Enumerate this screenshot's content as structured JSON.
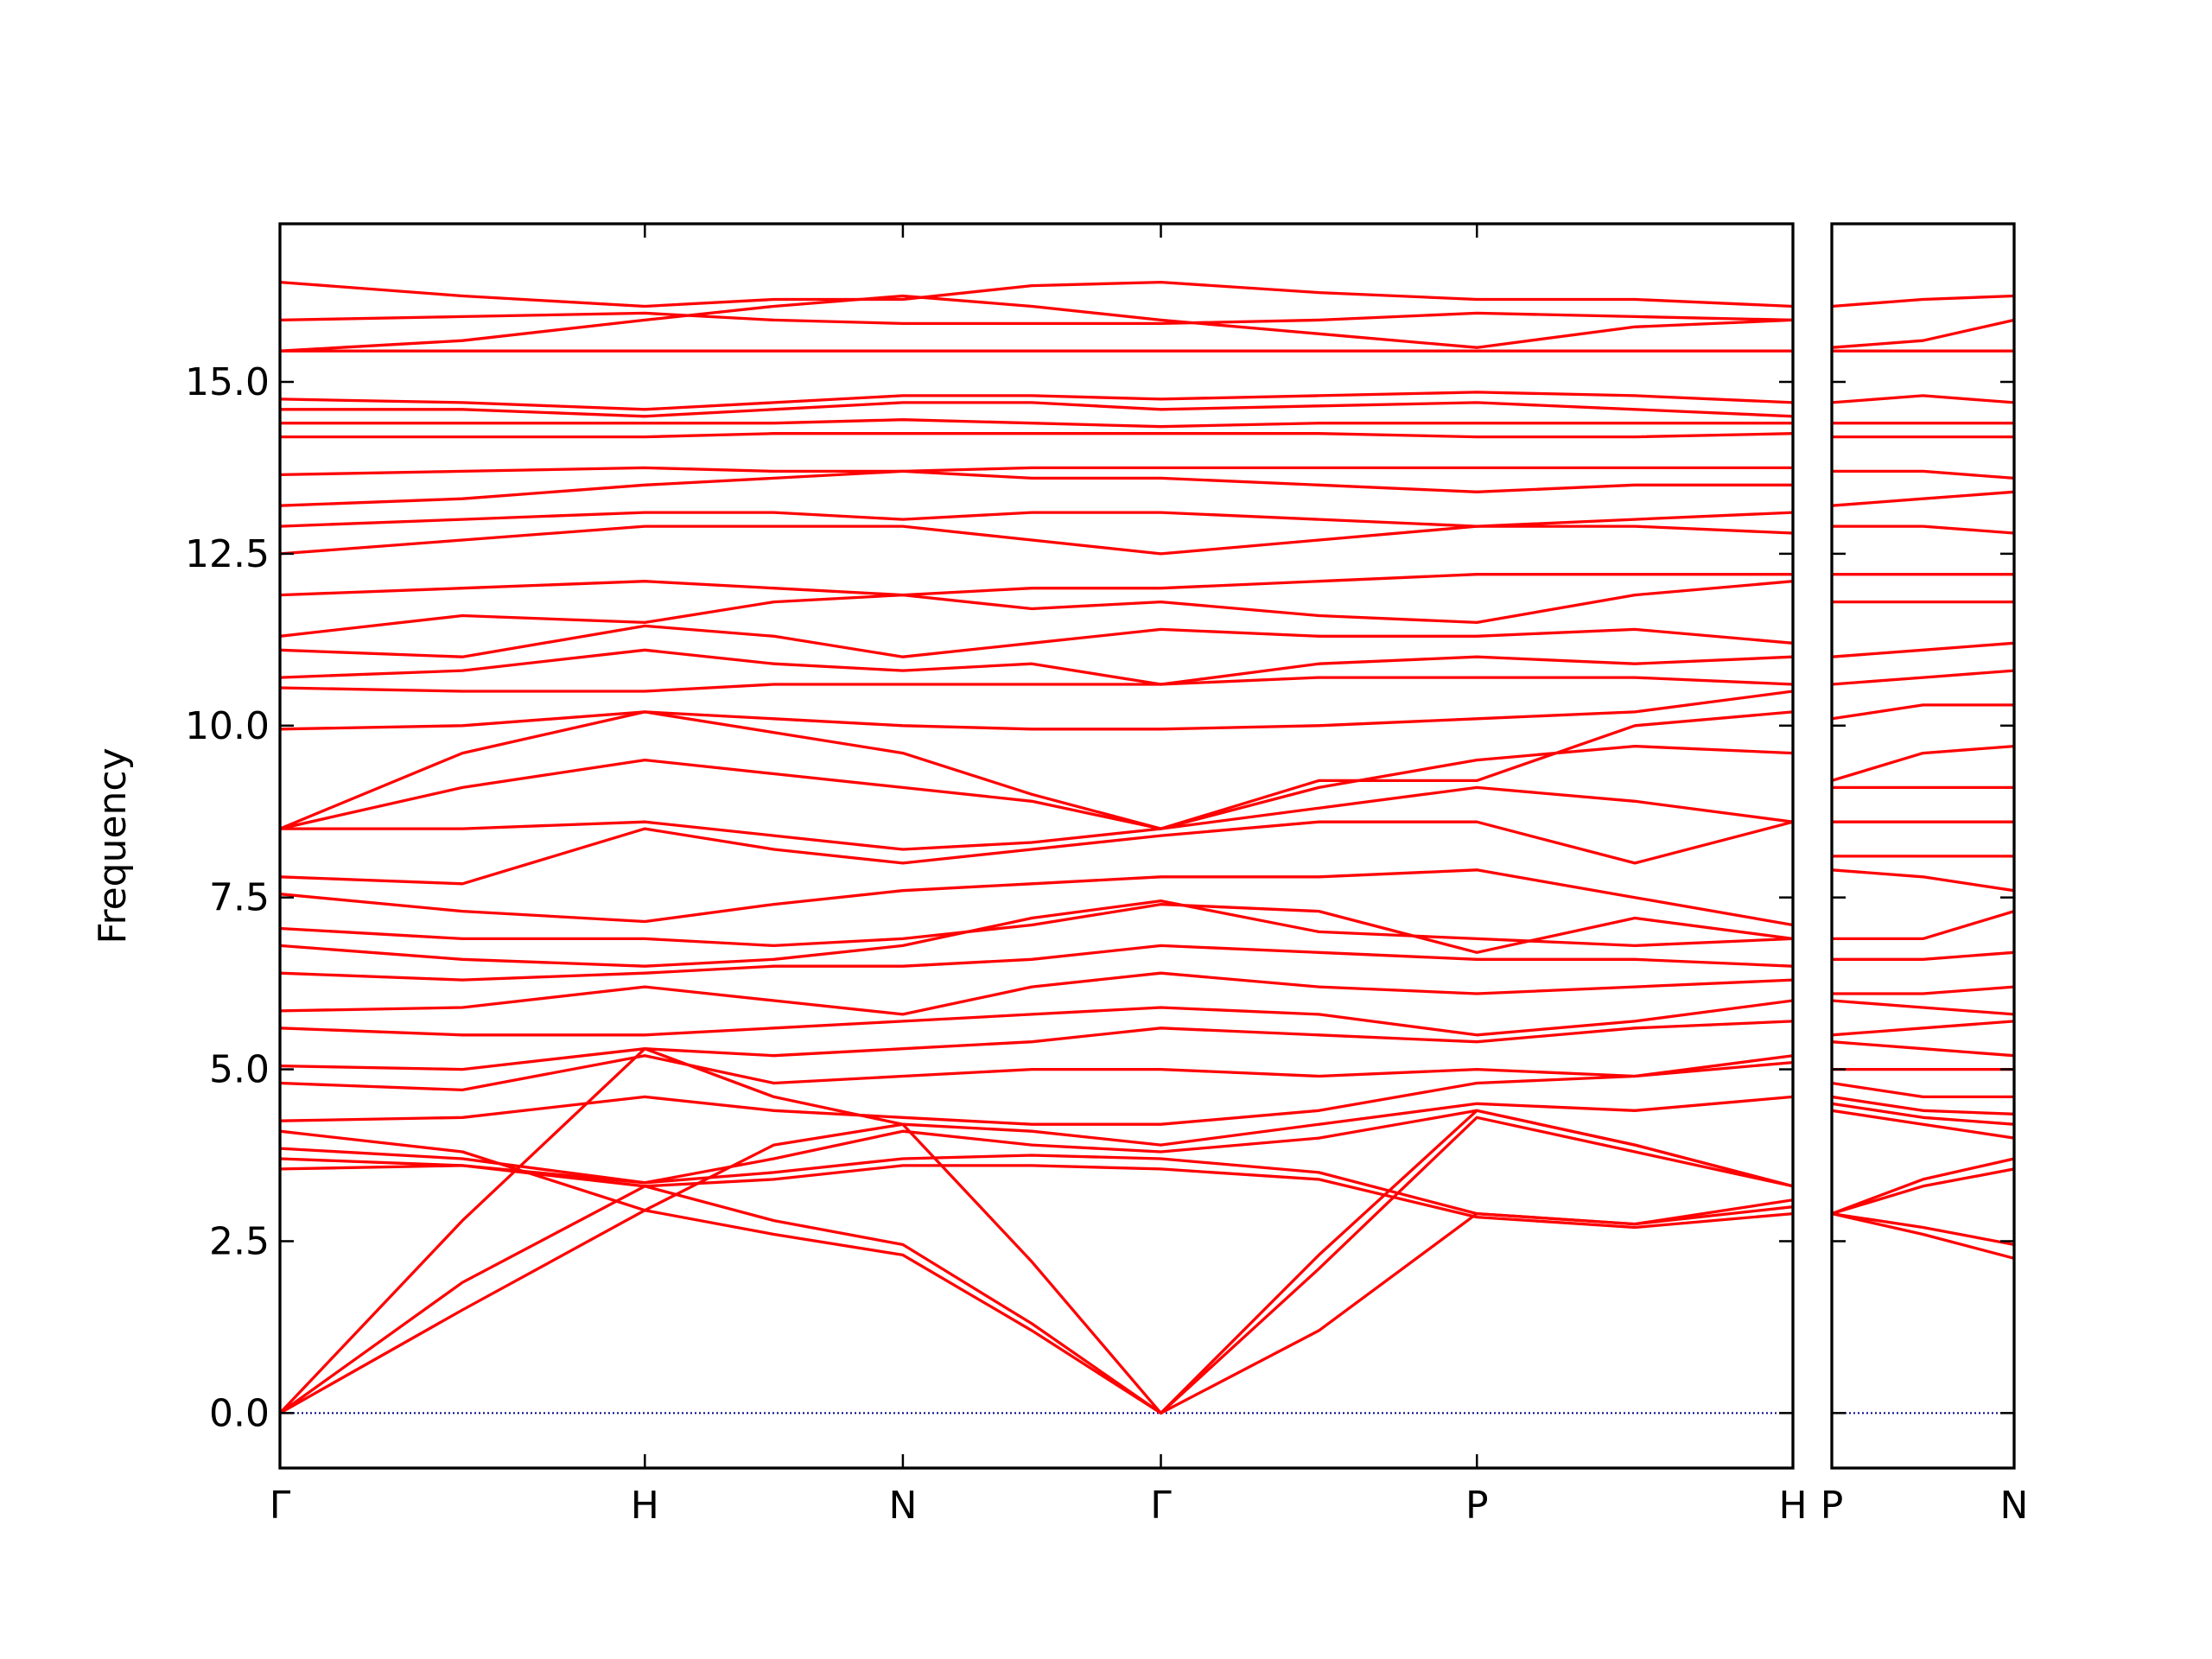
{
  "chart_data": [
    {
      "type": "line",
      "ylabel": "Frequency",
      "color": "#ff0000",
      "hline": 0,
      "hline_color": "#00008b",
      "xlim": [
        0,
        4.1463
      ],
      "ylim": [
        -0.8,
        17.3
      ],
      "xticks": [
        {
          "value": 0,
          "label": "Γ"
        },
        {
          "value": 1.0,
          "label": "H"
        },
        {
          "value": 1.7071,
          "label": "N"
        },
        {
          "value": 2.4142,
          "label": "Γ"
        },
        {
          "value": 3.2802,
          "label": "P"
        },
        {
          "value": 4.1463,
          "label": "H"
        }
      ],
      "yticks": [
        {
          "value": 0,
          "label": "0.0"
        },
        2.5,
        {
          "value": 5,
          "label": "5.0"
        },
        7.5,
        {
          "value": 10,
          "label": "10.0"
        },
        12.5,
        {
          "value": 15,
          "label": "15.0"
        }
      ],
      "x": [
        0,
        0.5,
        1.0,
        1.3536,
        1.7071,
        2.0607,
        2.4142,
        2.8472,
        3.2802,
        3.7133,
        4.1463
      ],
      "series": [
        {
          "values": [
            0,
            1.5,
            2.95,
            2.6,
            2.3,
            1.2,
            0,
            1.2,
            2.9,
            2.75,
            3.0
          ]
        },
        {
          "values": [
            0,
            1.9,
            3.3,
            2.8,
            2.45,
            1.3,
            0,
            2.1,
            4.3,
            3.8,
            3.3
          ]
        },
        {
          "values": [
            0,
            2.8,
            5.3,
            4.6,
            4.2,
            2.2,
            0,
            2.3,
            4.4,
            3.9,
            3.3
          ]
        },
        {
          "values": [
            3.55,
            3.6,
            3.3,
            3.4,
            3.6,
            3.6,
            3.55,
            3.4,
            2.85,
            2.7,
            2.9
          ]
        },
        {
          "values": [
            3.7,
            3.6,
            3.35,
            3.5,
            3.7,
            3.75,
            3.7,
            3.5,
            2.9,
            2.75,
            3.1
          ]
        },
        {
          "values": [
            3.85,
            3.7,
            3.35,
            3.7,
            4.1,
            3.9,
            3.8,
            4.0,
            4.4,
            3.9,
            3.3
          ]
        },
        {
          "values": [
            4.1,
            3.8,
            2.95,
            3.9,
            4.2,
            4.1,
            3.9,
            4.2,
            4.5,
            4.4,
            4.6
          ]
        },
        {
          "values": [
            4.25,
            4.3,
            4.6,
            4.4,
            4.3,
            4.2,
            4.2,
            4.4,
            4.8,
            4.9,
            5.2
          ]
        },
        {
          "values": [
            4.8,
            4.7,
            5.2,
            4.8,
            4.9,
            5.0,
            5.0,
            4.9,
            5.0,
            4.9,
            5.1
          ]
        },
        {
          "values": [
            5.05,
            5.0,
            5.3,
            5.2,
            5.3,
            5.4,
            5.6,
            5.5,
            5.4,
            5.6,
            5.7
          ]
        },
        {
          "values": [
            5.6,
            5.5,
            5.5,
            5.6,
            5.7,
            5.8,
            5.9,
            5.8,
            5.5,
            5.7,
            6.0
          ]
        },
        {
          "values": [
            5.85,
            5.9,
            6.2,
            6.0,
            5.8,
            6.2,
            6.4,
            6.2,
            6.1,
            6.2,
            6.3
          ]
        },
        {
          "values": [
            6.4,
            6.3,
            6.4,
            6.5,
            6.5,
            6.6,
            6.8,
            6.7,
            6.6,
            6.6,
            6.5
          ]
        },
        {
          "values": [
            6.8,
            6.6,
            6.5,
            6.6,
            6.8,
            7.2,
            7.45,
            7.0,
            6.9,
            6.8,
            6.9
          ]
        },
        {
          "values": [
            7.05,
            6.9,
            6.9,
            6.8,
            6.9,
            7.1,
            7.4,
            7.3,
            6.7,
            7.2,
            6.9
          ]
        },
        {
          "values": [
            7.55,
            7.3,
            7.15,
            7.4,
            7.6,
            7.7,
            7.8,
            7.8,
            7.9,
            7.5,
            7.1
          ]
        },
        {
          "values": [
            7.8,
            7.7,
            8.5,
            8.2,
            8.0,
            8.2,
            8.4,
            8.6,
            8.6,
            8.0,
            8.6
          ]
        },
        {
          "values": [
            8.5,
            8.5,
            8.6,
            8.4,
            8.2,
            8.3,
            8.5,
            8.8,
            9.1,
            8.9,
            8.6
          ]
        },
        {
          "values": [
            8.5,
            9.1,
            9.5,
            9.3,
            9.1,
            8.9,
            8.5,
            9.1,
            9.5,
            9.7,
            9.6
          ]
        },
        {
          "values": [
            8.5,
            9.6,
            10.2,
            9.9,
            9.6,
            9.0,
            8.5,
            9.2,
            9.2,
            10.0,
            10.2
          ]
        },
        {
          "values": [
            9.95,
            10.0,
            10.2,
            10.1,
            10.0,
            9.95,
            9.95,
            10.0,
            10.1,
            10.2,
            10.5
          ]
        },
        {
          "values": [
            10.55,
            10.5,
            10.5,
            10.6,
            10.6,
            10.6,
            10.6,
            10.7,
            10.7,
            10.7,
            10.6
          ]
        },
        {
          "values": [
            10.7,
            10.8,
            11.1,
            10.9,
            10.8,
            10.9,
            10.6,
            10.9,
            11.0,
            10.9,
            11.0
          ]
        },
        {
          "values": [
            11.1,
            11.0,
            11.45,
            11.3,
            11.0,
            11.2,
            11.4,
            11.3,
            11.3,
            11.4,
            11.2
          ]
        },
        {
          "values": [
            11.3,
            11.6,
            11.5,
            11.8,
            11.9,
            11.7,
            11.8,
            11.6,
            11.5,
            11.9,
            12.1
          ]
        },
        {
          "values": [
            11.9,
            12.0,
            12.1,
            12.0,
            11.9,
            12.0,
            12.0,
            12.1,
            12.2,
            12.2,
            12.2
          ]
        },
        {
          "values": [
            12.5,
            12.7,
            12.9,
            12.9,
            12.9,
            12.7,
            12.5,
            12.7,
            12.9,
            12.9,
            12.8
          ]
        },
        {
          "values": [
            12.9,
            13.0,
            13.1,
            13.1,
            13.0,
            13.1,
            13.1,
            13.0,
            12.9,
            13.0,
            13.1
          ]
        },
        {
          "values": [
            13.2,
            13.3,
            13.5,
            13.6,
            13.7,
            13.6,
            13.6,
            13.5,
            13.4,
            13.5,
            13.5
          ]
        },
        {
          "values": [
            13.65,
            13.7,
            13.75,
            13.7,
            13.7,
            13.75,
            13.75,
            13.75,
            13.75,
            13.75,
            13.75
          ]
        },
        {
          "values": [
            14.2,
            14.2,
            14.2,
            14.25,
            14.25,
            14.25,
            14.25,
            14.25,
            14.2,
            14.2,
            14.25
          ]
        },
        {
          "values": [
            14.4,
            14.4,
            14.4,
            14.4,
            14.45,
            14.4,
            14.35,
            14.4,
            14.4,
            14.4,
            14.4
          ]
        },
        {
          "values": [
            14.6,
            14.6,
            14.5,
            14.6,
            14.7,
            14.7,
            14.6,
            14.65,
            14.7,
            14.6,
            14.5
          ]
        },
        {
          "values": [
            14.75,
            14.7,
            14.6,
            14.7,
            14.8,
            14.8,
            14.75,
            14.8,
            14.85,
            14.8,
            14.7
          ]
        },
        {
          "values": [
            15.45,
            15.45,
            15.45,
            15.45,
            15.45,
            15.45,
            15.45,
            15.45,
            15.45,
            15.45,
            15.45
          ]
        },
        {
          "values": [
            15.45,
            15.6,
            15.9,
            16.1,
            16.25,
            16.1,
            15.9,
            15.7,
            15.5,
            15.8,
            15.9
          ]
        },
        {
          "values": [
            15.9,
            15.95,
            16.0,
            15.9,
            15.85,
            15.85,
            15.85,
            15.9,
            16.0,
            15.95,
            15.9
          ]
        },
        {
          "values": [
            16.45,
            16.25,
            16.1,
            16.2,
            16.2,
            16.4,
            16.45,
            16.3,
            16.2,
            16.2,
            16.1
          ]
        }
      ]
    },
    {
      "type": "line",
      "color": "#ff0000",
      "hline": 0,
      "hline_color": "#00008b",
      "xlim": [
        3.2802,
        3.7802
      ],
      "ylim": [
        -0.8,
        17.3
      ],
      "xticks": [
        {
          "value": 3.2802,
          "label": "P"
        },
        {
          "value": 3.7802,
          "label": "N"
        }
      ],
      "x": [
        3.2802,
        3.5302,
        3.7802
      ],
      "series": [
        {
          "values": [
            2.9,
            2.6,
            2.25
          ]
        },
        {
          "values": [
            2.9,
            2.7,
            2.45
          ]
        },
        {
          "values": [
            2.9,
            3.3,
            3.55
          ]
        },
        {
          "values": [
            2.9,
            3.4,
            3.7
          ]
        },
        {
          "values": [
            4.4,
            4.2,
            4.0
          ]
        },
        {
          "values": [
            4.5,
            4.3,
            4.2
          ]
        },
        {
          "values": [
            4.6,
            4.4,
            4.35
          ]
        },
        {
          "values": [
            4.8,
            4.6,
            4.6
          ]
        },
        {
          "values": [
            5.0,
            5.0,
            5.0
          ]
        },
        {
          "values": [
            5.4,
            5.3,
            5.2
          ]
        },
        {
          "values": [
            5.5,
            5.6,
            5.7
          ]
        },
        {
          "values": [
            6.0,
            5.9,
            5.8
          ]
        },
        {
          "values": [
            6.1,
            6.1,
            6.2
          ]
        },
        {
          "values": [
            6.6,
            6.6,
            6.7
          ]
        },
        {
          "values": [
            6.9,
            6.9,
            7.3
          ]
        },
        {
          "values": [
            7.9,
            7.8,
            7.6
          ]
        },
        {
          "values": [
            8.1,
            8.1,
            8.1
          ]
        },
        {
          "values": [
            8.6,
            8.6,
            8.6
          ]
        },
        {
          "values": [
            9.1,
            9.1,
            9.1
          ]
        },
        {
          "values": [
            9.2,
            9.6,
            9.7
          ]
        },
        {
          "values": [
            10.1,
            10.3,
            10.3
          ]
        },
        {
          "values": [
            10.6,
            10.7,
            10.8
          ]
        },
        {
          "values": [
            11.0,
            11.1,
            11.2
          ]
        },
        {
          "values": [
            11.8,
            11.8,
            11.8
          ]
        },
        {
          "values": [
            12.2,
            12.2,
            12.2
          ]
        },
        {
          "values": [
            12.9,
            12.9,
            12.8
          ]
        },
        {
          "values": [
            13.2,
            13.3,
            13.4
          ]
        },
        {
          "values": [
            13.7,
            13.7,
            13.6
          ]
        },
        {
          "values": [
            14.2,
            14.2,
            14.2
          ]
        },
        {
          "values": [
            14.4,
            14.4,
            14.4
          ]
        },
        {
          "values": [
            14.7,
            14.8,
            14.7
          ]
        },
        {
          "values": [
            15.45,
            15.45,
            15.45
          ]
        },
        {
          "values": [
            15.5,
            15.6,
            15.9
          ]
        },
        {
          "values": [
            16.1,
            16.2,
            16.25
          ]
        }
      ]
    }
  ]
}
